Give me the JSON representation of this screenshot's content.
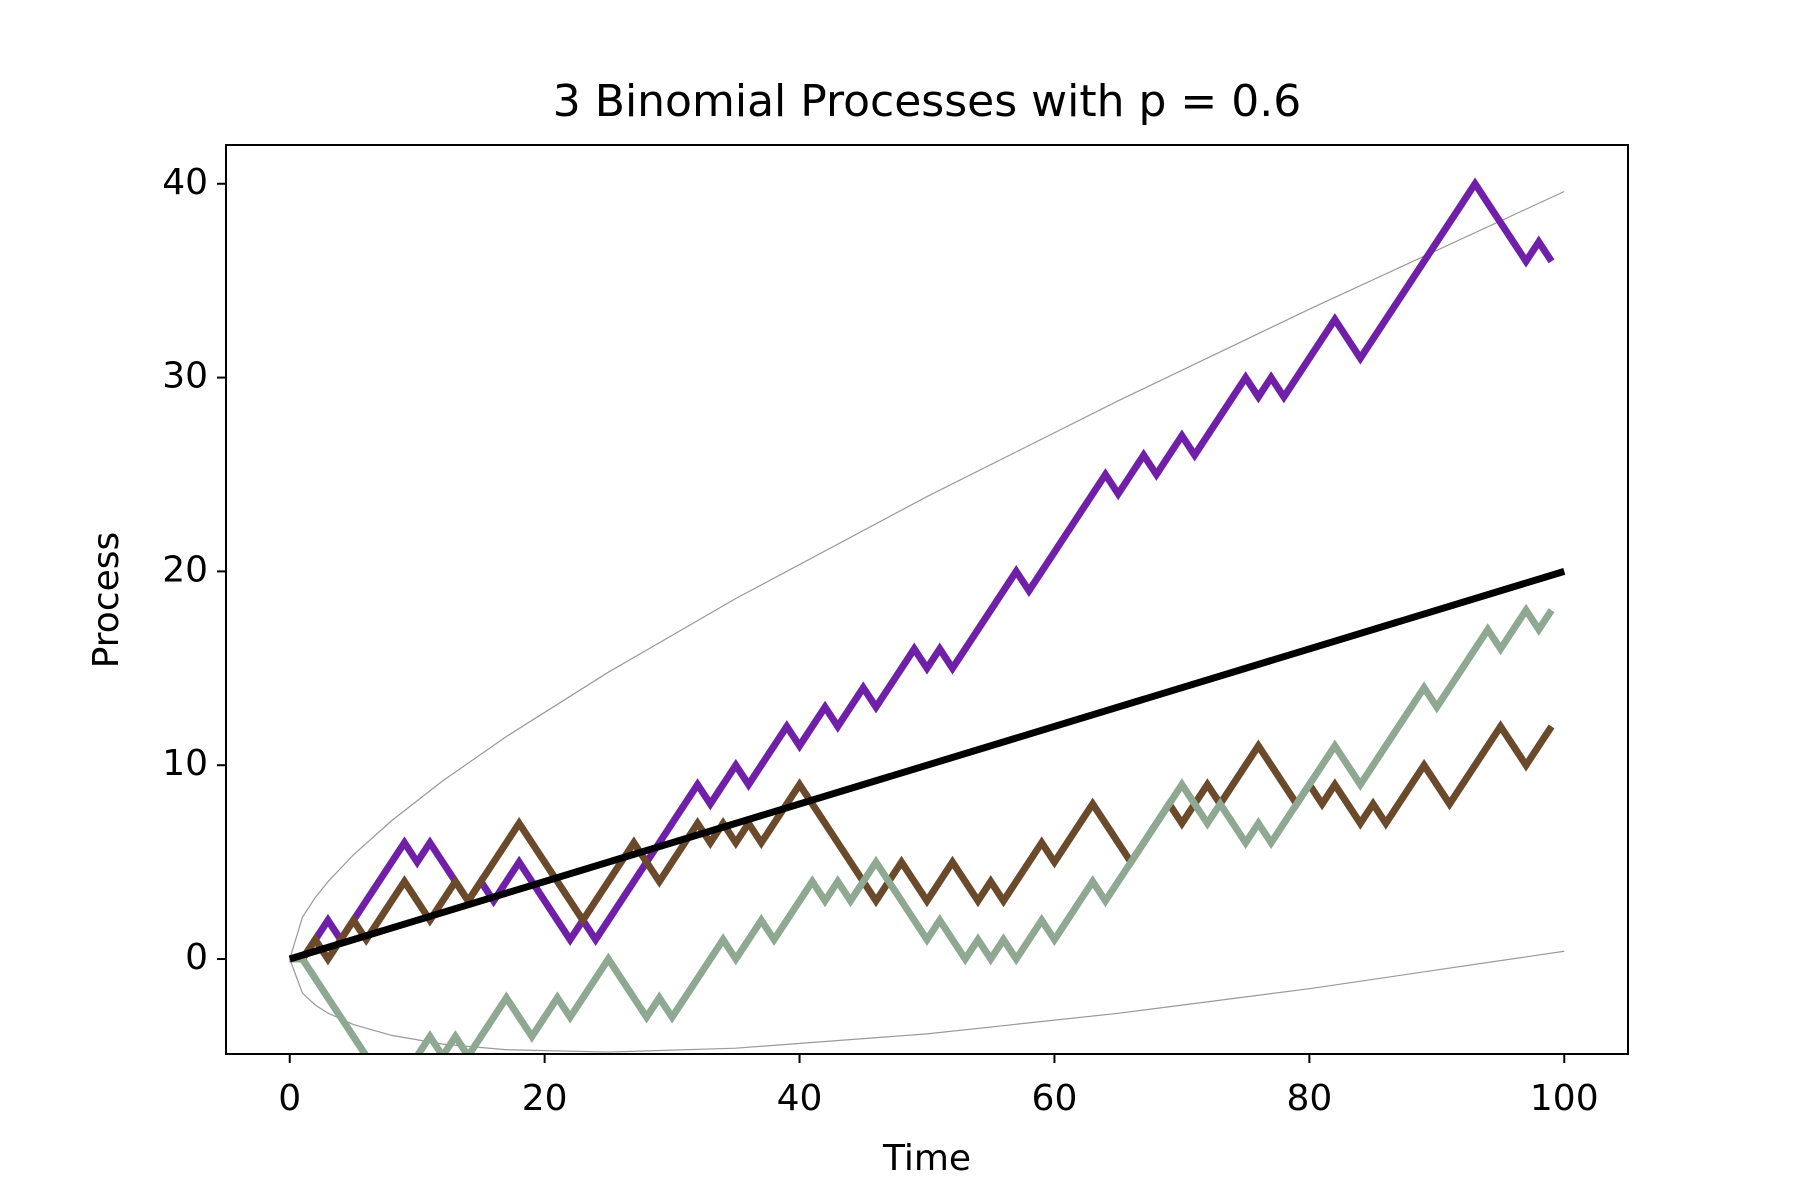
{
  "chart_data": {
    "type": "line",
    "title": "3 Binomial Processes with p = 0.6",
    "x_label": "Time",
    "y_label": "Process",
    "xlim": [
      -5,
      105
    ],
    "ylim": [
      -4.9,
      42
    ],
    "xticks": [
      0,
      20,
      40,
      60,
      80,
      100
    ],
    "yticks": [
      0,
      10,
      20,
      30,
      40
    ],
    "grid": false,
    "x": [
      0,
      1,
      2,
      3,
      4,
      5,
      6,
      7,
      8,
      9,
      10,
      11,
      12,
      13,
      14,
      15,
      16,
      17,
      18,
      19,
      20,
      21,
      22,
      23,
      24,
      25,
      26,
      27,
      28,
      29,
      30,
      31,
      32,
      33,
      34,
      35,
      36,
      37,
      38,
      39,
      40,
      41,
      42,
      43,
      44,
      45,
      46,
      47,
      48,
      49,
      50,
      51,
      52,
      53,
      54,
      55,
      56,
      57,
      58,
      59,
      60,
      61,
      62,
      63,
      64,
      65,
      66,
      67,
      68,
      69,
      70,
      71,
      72,
      73,
      74,
      75,
      76,
      77,
      78,
      79,
      80,
      81,
      82,
      83,
      84,
      85,
      86,
      87,
      88,
      89,
      90,
      91,
      92,
      93,
      94,
      95,
      96,
      97,
      98,
      99
    ],
    "series": [
      {
        "color": "#999999",
        "line_width": 1.2,
        "x": [
          0,
          1,
          2,
          3,
          5,
          8,
          12,
          17,
          25,
          35,
          50,
          65,
          80,
          100
        ],
        "values": [
          0,
          2.16,
          3.17,
          3.99,
          5.38,
          7.14,
          9.19,
          11.48,
          14.8,
          18.6,
          23.86,
          28.8,
          33.53,
          39.6
        ]
      },
      {
        "color": "#999999",
        "line_width": 1.2,
        "x": [
          0,
          1,
          2,
          3,
          5,
          8,
          12,
          17,
          25,
          35,
          50,
          65,
          80,
          100
        ],
        "values": [
          0,
          -1.76,
          -2.37,
          -2.79,
          -3.38,
          -3.94,
          -4.39,
          -4.68,
          -4.8,
          -4.6,
          -3.86,
          -2.8,
          -1.53,
          0.4
        ]
      },
      {
        "color": "#7020a8",
        "line_width": 7,
        "values": [
          0,
          0,
          1,
          2,
          1,
          2,
          3,
          4,
          5,
          6,
          5,
          6,
          5,
          4,
          3,
          4,
          3,
          4,
          5,
          4,
          3,
          2,
          1,
          2,
          1,
          2,
          3,
          4,
          5,
          6,
          7,
          8,
          9,
          8,
          9,
          10,
          9,
          10,
          11,
          12,
          11,
          12,
          13,
          12,
          13,
          14,
          13,
          14,
          15,
          16,
          15,
          16,
          15,
          16,
          17,
          18,
          19,
          20,
          19,
          20,
          21,
          22,
          23,
          24,
          25,
          24,
          25,
          26,
          25,
          26,
          27,
          26,
          27,
          28,
          29,
          30,
          29,
          30,
          29,
          30,
          31,
          32,
          33,
          32,
          31,
          32,
          33,
          34,
          35,
          36,
          37,
          38,
          39,
          40,
          39,
          38,
          37,
          36,
          37,
          36
        ]
      },
      {
        "color": "#6b4a2b",
        "line_width": 7,
        "values": [
          0,
          0,
          1,
          0,
          1,
          2,
          1,
          2,
          3,
          4,
          3,
          2,
          3,
          4,
          3,
          4,
          5,
          6,
          7,
          6,
          5,
          4,
          3,
          2,
          3,
          4,
          5,
          6,
          5,
          4,
          5,
          6,
          7,
          6,
          7,
          6,
          7,
          6,
          7,
          8,
          9,
          8,
          7,
          6,
          5,
          4,
          3,
          4,
          5,
          4,
          3,
          4,
          5,
          4,
          3,
          4,
          3,
          4,
          5,
          6,
          5,
          6,
          7,
          8,
          7,
          6,
          5,
          6,
          7,
          8,
          7,
          8,
          9,
          8,
          9,
          10,
          11,
          10,
          9,
          8,
          9,
          8,
          9,
          8,
          7,
          8,
          7,
          8,
          9,
          10,
          9,
          8,
          9,
          10,
          11,
          12,
          11,
          10,
          11,
          12
        ]
      },
      {
        "color": "#8fa891",
        "line_width": 7,
        "values": [
          0,
          0,
          -1,
          -2,
          -3,
          -4,
          -5,
          -6,
          -7,
          -6,
          -5,
          -4,
          -5,
          -4,
          -5,
          -4,
          -3,
          -2,
          -3,
          -4,
          -3,
          -2,
          -3,
          -2,
          -1,
          0,
          -1,
          -2,
          -3,
          -2,
          -3,
          -2,
          -1,
          0,
          1,
          0,
          1,
          2,
          1,
          2,
          3,
          4,
          3,
          4,
          3,
          4,
          5,
          4,
          3,
          2,
          1,
          2,
          1,
          0,
          1,
          0,
          1,
          0,
          1,
          2,
          1,
          2,
          3,
          4,
          3,
          4,
          5,
          6,
          7,
          8,
          9,
          8,
          7,
          8,
          7,
          6,
          7,
          6,
          7,
          8,
          9,
          10,
          11,
          10,
          9,
          10,
          11,
          12,
          13,
          14,
          13,
          14,
          15,
          16,
          17,
          16,
          17,
          18,
          17,
          18
        ]
      },
      {
        "color": "#000000",
        "line_width": 7,
        "x": [
          0,
          100
        ],
        "values": [
          0,
          20
        ]
      }
    ]
  }
}
